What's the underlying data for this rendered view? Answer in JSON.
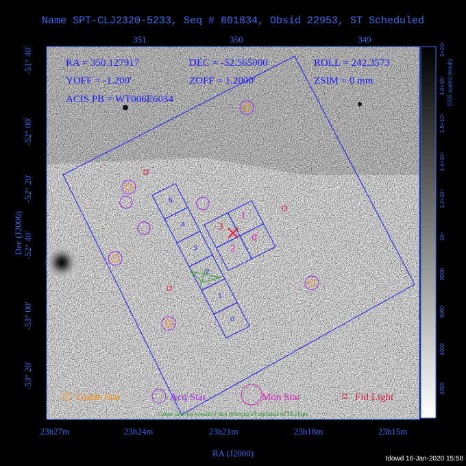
{
  "header": {
    "title": "Name SPT-CLJ2320-5233, Seq # 801834, Obsid 22953, ST Scheduled"
  },
  "axes": {
    "top_ticks": [
      "351",
      "350",
      "349"
    ],
    "left_ticks": [
      "-51° 40'",
      "-52° 00'",
      "-52° 20'",
      "-52° 40'",
      "-53° 00'",
      "-53° 20'"
    ],
    "bottom_ticks": [
      "23h27m",
      "23h24m",
      "23h21m",
      "23h18m",
      "23h15m"
    ],
    "x_label": "RA (J2000)",
    "y_label": "Dec (J2000)"
  },
  "info": [
    "RA = 350.127917",
    "DEC = -52.565000",
    "ROLL = 242.3573",
    "YOFF = -1.200'",
    "ZOFF = 1.2000'",
    "ZSIM = 0 mm",
    "ACIS PB = WT006E6034"
  ],
  "acis_s_chips": [
    "5",
    "4",
    "3",
    "2",
    "1",
    "0"
  ],
  "acis_i_chips": [
    "3",
    "1",
    "2",
    "0"
  ],
  "legend": [
    "Guide Star",
    "Acq Star",
    "Mon Star",
    "Fid Light"
  ],
  "note": "Green denotes presence and ordering of optional ACIS chips",
  "colorbar": {
    "label": "DSS scaled density",
    "ticks": [
      "2000",
      "4000",
      "6000",
      "8000",
      "10⁴",
      "1.2×10⁴",
      "1.4×10⁴",
      "1.6×10⁴",
      "1.8×10⁴",
      "2×10⁴"
    ]
  },
  "footer": "tdowd 16-Jan-2020 15:58"
}
